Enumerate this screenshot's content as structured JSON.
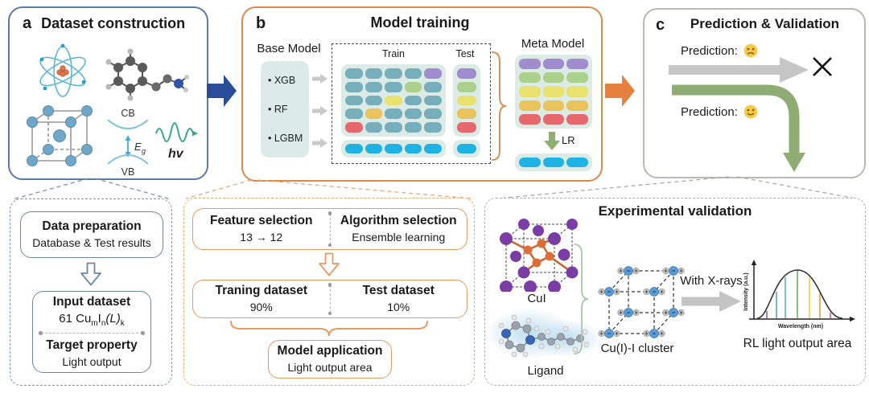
{
  "panel_a": {
    "label": "a",
    "title": "Dataset construction",
    "cb": "CB",
    "vb": "VB",
    "eg_main": "E",
    "eg_sub": "g",
    "hv": "hv"
  },
  "panel_b": {
    "label": "b",
    "title": "Model training",
    "base_label": "Base Model",
    "models": [
      "• XGB",
      "• RF",
      "• LGBM"
    ],
    "train_label": "Train",
    "test_label": "Test",
    "meta_label": "Meta Model",
    "lr_label": "LR",
    "matrix": {
      "palette": {
        "t": "#77aebb",
        "p": "#a08cce",
        "g": "#abd18d",
        "y": "#e9e26e",
        "o": "#eac35c",
        "r": "#e4686c",
        "c": "#1eb2e5"
      },
      "train": [
        [
          "t",
          "t",
          "t",
          "t",
          "p"
        ],
        [
          "t",
          "t",
          "t",
          "g",
          "t"
        ],
        [
          "t",
          "t",
          "y",
          "t",
          "t"
        ],
        [
          "t",
          "o",
          "t",
          "t",
          "t"
        ],
        [
          "r",
          "t",
          "t",
          "t",
          "t"
        ]
      ],
      "train_bottom": [
        "c",
        "c",
        "c",
        "c",
        "c"
      ],
      "test": [
        [
          "p"
        ],
        [
          "g"
        ],
        [
          "y"
        ],
        [
          "o"
        ],
        [
          "r"
        ]
      ],
      "test_bottom": [
        "c"
      ],
      "meta": [
        [
          "p",
          "p",
          "p"
        ],
        [
          "g",
          "g",
          "g"
        ],
        [
          "y",
          "y",
          "y"
        ],
        [
          "o",
          "o",
          "o"
        ],
        [
          "r",
          "r",
          "r"
        ]
      ],
      "meta_bottom": [
        "c",
        "c",
        "c"
      ]
    }
  },
  "panel_c": {
    "label": "c",
    "title": "Prediction & Validation",
    "pred_bad_label": "Prediction:",
    "pred_good_label": "Prediction:"
  },
  "data_prep": {
    "title": "Data preparation",
    "subtitle": "Database & Test results",
    "input_title": "Input dataset",
    "formula": {
      "prefix": "61 Cu",
      "sub_m": "m",
      "i": "I",
      "sub_n": "n",
      "l": "(L)",
      "sub_k": "k"
    },
    "target_title": "Target property",
    "target_value": "Light output"
  },
  "pipeline": {
    "feature_title": "Feature selection",
    "feature_value": "13 → 12",
    "algorithm_title": "Algorithm selection",
    "algorithm_value": "Ensemble learning",
    "training_title": "Traning dataset",
    "training_value": "90%",
    "test_title": "Test dataset",
    "test_value": "10%",
    "application_title": "Model application",
    "application_value": "Light output area"
  },
  "experimental": {
    "title": "Experimental validation",
    "cui_label": "CuI",
    "ligand_label": "Ligand",
    "cluster_label": "Cu(I)-I cluster",
    "xray_label": "With X-rays",
    "output_label": "RL light output area",
    "axis_y": "Intensity (a.u.)",
    "axis_x": "Wavelength (nm)"
  },
  "colors": {
    "panel_a_border": "#5a7aa8",
    "panel_b_border": "#e0874a",
    "panel_c_border": "#b5bcae",
    "arrow_blue": "#2a4d9a",
    "arrow_orange": "#e5803e",
    "arrow_gray": "#c6c6c6",
    "arrow_green": "#8fad72",
    "pill_bg": "#dcebe5"
  }
}
